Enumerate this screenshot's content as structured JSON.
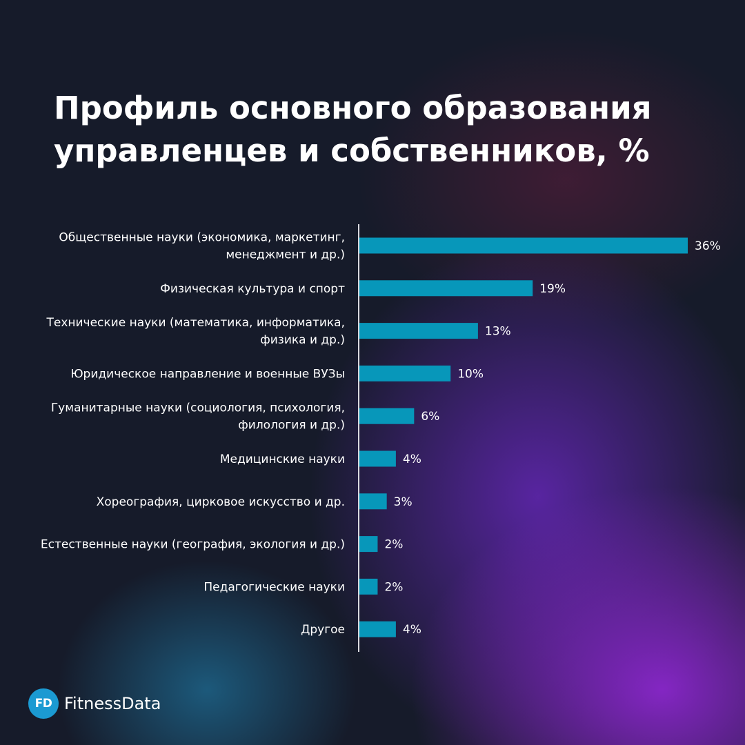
{
  "title_lines": [
    "Профиль основного образования",
    "управленцев и собственников, %"
  ],
  "brand": {
    "badge": "FD",
    "name": "FitnessData"
  },
  "colors": {
    "bar": "#0797ba",
    "axis": "#d9d9de",
    "text": "#ffffff"
  },
  "chart_data": {
    "type": "bar",
    "orientation": "horizontal",
    "title": "Профиль основного образования управленцев и собственников, %",
    "xlim": [
      0,
      36
    ],
    "grid": false,
    "categories": [
      [
        "Общественные науки (экономика, маркетинг,",
        "менеджмент и др.)"
      ],
      [
        "Физическая культура и спорт"
      ],
      [
        "Технические науки (математика, информатика,",
        "физика и др.)"
      ],
      [
        "Юридическое направление и военные ВУЗы"
      ],
      [
        "Гуманитарные науки (социология, психология,",
        "филология и др.)"
      ],
      [
        "Медицинские науки"
      ],
      [
        "Хореография, цирковое искусство и др."
      ],
      [
        "Естественные науки (география, экология и др.)"
      ],
      [
        "Педагогические науки"
      ],
      [
        "Другое"
      ]
    ],
    "values": [
      36,
      19,
      13,
      10,
      6,
      4,
      3,
      2,
      2,
      4
    ],
    "value_labels": [
      "36%",
      "19%",
      "13%",
      "10%",
      "6%",
      "4%",
      "3%",
      "2%",
      "2%",
      "4%"
    ]
  }
}
